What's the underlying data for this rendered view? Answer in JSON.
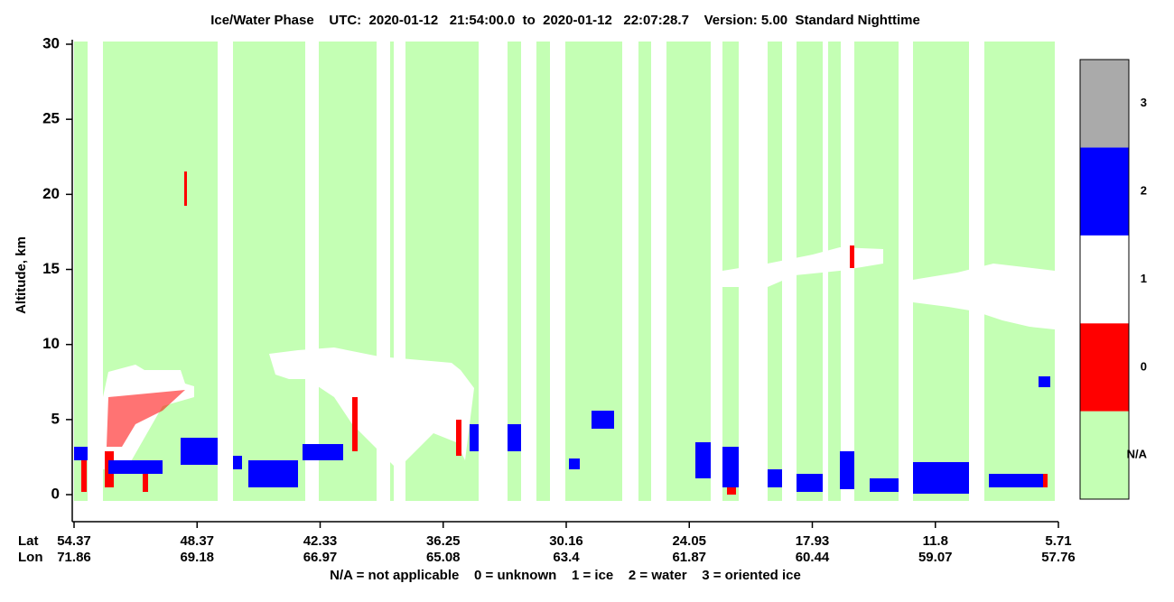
{
  "chart_data": {
    "type": "curtain",
    "title": "Ice/Water Phase    UTC:  2020-01-12   21:54:00.0  to  2020-01-12   22:07:28.7    Version: 5.00  Standard Nighttime",
    "y_label": "Altitude, km",
    "ylim": [
      -1.8,
      30.3
    ],
    "yticks": [
      0,
      5,
      10,
      15,
      20,
      25,
      30
    ],
    "x_rows": [
      {
        "name": "Lat",
        "values": [
          54.37,
          48.37,
          42.33,
          36.25,
          30.16,
          24.05,
          17.93,
          11.8,
          5.71
        ]
      },
      {
        "name": "Lon",
        "values": [
          71.86,
          69.18,
          66.97,
          65.08,
          63.4,
          61.87,
          60.44,
          59.07,
          57.76
        ]
      }
    ],
    "footnote": "N/A = not applicable    0 = unknown    1 = ice    2 = water    3 = oriented ice",
    "colorbar": [
      {
        "label": "N/A",
        "color": "#c4ffb4"
      },
      {
        "label": "0",
        "color": "#ff0000"
      },
      {
        "label": "1",
        "color": "#ffffff"
      },
      {
        "label": "2",
        "color": "#0000ff"
      },
      {
        "label": "3",
        "color": "#aaaaaa"
      }
    ]
  }
}
